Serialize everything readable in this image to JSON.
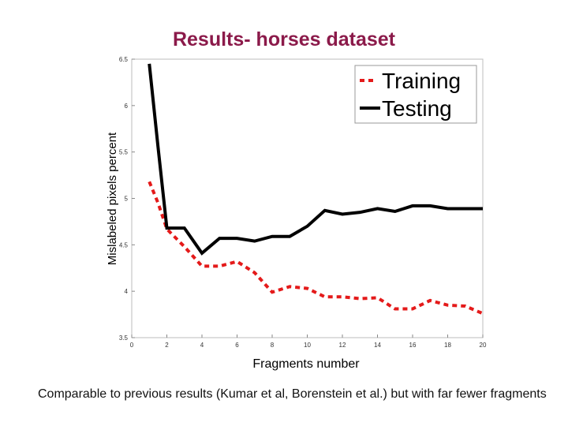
{
  "slide": {
    "title": "Results- horses dataset",
    "caption": "Comparable to previous results (Kumar et al, Borenstein et al.) but with far fewer fragments"
  },
  "chart_data": {
    "type": "line",
    "title": "Results- horses dataset",
    "xlabel": "Fragments number",
    "ylabel": "Mislabeled pixels percent",
    "xlim": [
      0,
      20
    ],
    "ylim": [
      3.5,
      6.5
    ],
    "xticks": [
      "0",
      "2",
      "4",
      "6",
      "8",
      "10",
      "12",
      "14",
      "16",
      "18",
      "20"
    ],
    "yticks": [
      "3.5",
      "4",
      "4.5",
      "5",
      "5.5",
      "6",
      "6.5"
    ],
    "legend_position": "top-right",
    "grid": false,
    "series": [
      {
        "name": "Training",
        "color": "#e41a1a",
        "style": "dashed",
        "x": [
          1,
          1.5,
          2,
          3,
          4,
          5,
          6,
          7,
          8,
          9,
          10,
          11,
          12,
          13,
          14,
          15,
          16,
          17,
          18,
          19,
          20
        ],
        "y": [
          5.18,
          4.95,
          4.67,
          4.48,
          4.27,
          4.27,
          4.32,
          4.2,
          3.99,
          4.05,
          4.03,
          3.94,
          3.94,
          3.92,
          3.93,
          3.81,
          3.81,
          3.9,
          3.85,
          3.84,
          3.76
        ]
      },
      {
        "name": "Testing",
        "color": "#000000",
        "style": "solid",
        "x": [
          1,
          1.5,
          2,
          3,
          4,
          5,
          6,
          7,
          8,
          9,
          10,
          11,
          12,
          13,
          14,
          15,
          16,
          17,
          18,
          19,
          20
        ],
        "y": [
          6.45,
          5.55,
          4.68,
          4.68,
          4.41,
          4.57,
          4.57,
          4.54,
          4.59,
          4.59,
          4.7,
          4.87,
          4.83,
          4.85,
          4.89,
          4.86,
          4.92,
          4.92,
          4.89,
          4.89,
          4.89
        ]
      }
    ]
  }
}
